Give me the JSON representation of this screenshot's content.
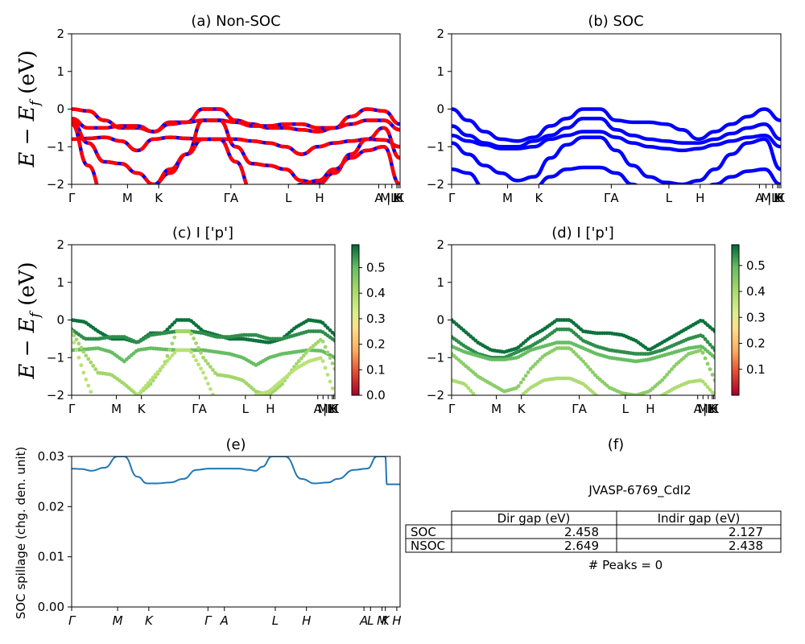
{
  "figure": {
    "colors": {
      "band": "#0000ff",
      "band_dash": "#ff0000",
      "spill": "#1f77b4"
    },
    "band_ylabel": "E − E",
    "band_ylabel_sub": "f",
    "band_ylabel_unit": " (eV)"
  },
  "chart_data": [
    {
      "id": "a",
      "type": "line",
      "title": "(a) Non-SOC",
      "xlabel": "",
      "ylabel": "E − E_f (eV)",
      "ylim": [
        -2,
        2
      ],
      "yticks": [
        "2",
        "1",
        "0",
        "−1",
        "−2"
      ],
      "xticks": [
        "Γ",
        "M",
        "K",
        "ΓA",
        "L",
        "H",
        "A",
        "M",
        "|L",
        "K",
        "H",
        "K"
      ],
      "style": "blue line with red dashes (two overlapping spin channels)",
      "series": [
        {
          "x": [
            0,
            0.5,
            1,
            1.5,
            2,
            2.5,
            3,
            3.5,
            4,
            4.5,
            5,
            5.5,
            6,
            6.5,
            7,
            7.5,
            8,
            8.5,
            9,
            9.5,
            10
          ],
          "y": [
            0.0,
            -0.05,
            -0.3,
            -0.5,
            -0.5,
            -0.6,
            -0.35,
            -0.35,
            0.0,
            0.0,
            -0.3,
            -0.4,
            -0.5,
            -0.5,
            -0.55,
            -0.6,
            -0.5,
            -0.2,
            0.0,
            -0.05,
            -0.4
          ]
        },
        {
          "x": [
            0,
            0.5,
            1,
            1.5,
            2,
            2.5,
            3,
            3.5,
            4,
            4.5,
            5,
            5.5,
            6,
            6.5,
            7,
            7.5,
            8,
            8.5,
            9,
            9.5,
            10
          ],
          "y": [
            -0.25,
            -0.5,
            -0.5,
            -0.45,
            -0.45,
            -0.6,
            -0.4,
            -0.35,
            -0.3,
            -0.3,
            -0.35,
            -0.45,
            -0.45,
            -0.4,
            -0.4,
            -0.5,
            -0.5,
            -0.4,
            -0.3,
            -0.3,
            -0.55
          ]
        },
        {
          "x": [
            0,
            0.5,
            1,
            1.5,
            2,
            2.5,
            3,
            3.5,
            4,
            4.5,
            5,
            5.5,
            6,
            6.5,
            7,
            7.5,
            8,
            8.5,
            9,
            9.5,
            10
          ],
          "y": [
            -0.8,
            -0.78,
            -0.75,
            -0.85,
            -1.1,
            -0.8,
            -0.75,
            -0.78,
            -0.8,
            -0.8,
            -0.8,
            -0.85,
            -0.9,
            -1.0,
            -1.2,
            -1.0,
            -0.9,
            -0.85,
            -0.8,
            -0.82,
            -1.0
          ]
        },
        {
          "x": [
            0,
            0.5,
            1,
            1.5,
            2,
            2.5,
            3,
            3.5,
            4,
            4.5,
            5,
            5.5,
            6,
            6.5,
            7,
            7.5,
            8,
            8.5,
            9,
            9.5,
            10
          ],
          "y": [
            -0.3,
            -0.9,
            -1.4,
            -1.45,
            -1.7,
            -2.0,
            -1.7,
            -1.2,
            -0.3,
            -0.3,
            -1.0,
            -1.45,
            -1.5,
            -1.6,
            -1.9,
            -2.0,
            -1.7,
            -1.2,
            -0.8,
            -0.5,
            -1.3
          ]
        },
        {
          "x": [
            0,
            0.5,
            1,
            1.5,
            2,
            2.5,
            3,
            3.5,
            4,
            4.5,
            5,
            5.5,
            6,
            6.5,
            7,
            7.5,
            8,
            8.5,
            9,
            9.5,
            10
          ],
          "y": [
            -0.4,
            -1.5,
            -2.4,
            -2.4,
            -2.2,
            -2.0,
            -1.6,
            -1.2,
            -0.8,
            -0.8,
            -1.4,
            -2.2,
            -2.4,
            -2.3,
            -2.0,
            -1.9,
            -1.6,
            -1.3,
            -1.1,
            -1.0,
            -2.0
          ]
        }
      ]
    },
    {
      "id": "b",
      "type": "line",
      "title": "(b) SOC",
      "xlabel": "",
      "ylabel": "",
      "ylim": [
        -2,
        2
      ],
      "yticks": [
        "2",
        "1",
        "0",
        "−1",
        "−2"
      ],
      "xticks": [
        "Γ",
        "M",
        "K",
        "ΓA",
        "L",
        "H",
        "A",
        "M",
        "|L",
        "K",
        "H",
        "K"
      ],
      "style": "blue line",
      "series": [
        {
          "x": [
            0,
            0.5,
            1,
            1.5,
            2,
            2.5,
            3,
            3.5,
            4,
            4.5,
            5,
            5.5,
            6,
            6.5,
            7,
            7.5,
            8,
            8.5,
            9,
            9.5,
            10
          ],
          "y": [
            0.0,
            -0.3,
            -0.6,
            -0.8,
            -0.85,
            -0.75,
            -0.45,
            -0.25,
            0.0,
            0.0,
            -0.3,
            -0.35,
            -0.35,
            -0.4,
            -0.55,
            -0.8,
            -0.6,
            -0.4,
            -0.2,
            0.0,
            -0.3
          ]
        },
        {
          "x": [
            0,
            0.5,
            1,
            1.5,
            2,
            2.5,
            3,
            3.5,
            4,
            4.5,
            5,
            5.5,
            6,
            6.5,
            7,
            7.5,
            8,
            8.5,
            9,
            9.5,
            10
          ],
          "y": [
            -0.45,
            -0.7,
            -0.9,
            -1.0,
            -1.0,
            -0.85,
            -0.7,
            -0.5,
            -0.25,
            -0.25,
            -0.55,
            -0.7,
            -0.8,
            -0.85,
            -0.9,
            -0.9,
            -0.8,
            -0.65,
            -0.5,
            -0.4,
            -0.8
          ]
        },
        {
          "x": [
            0,
            0.5,
            1,
            1.5,
            2,
            2.5,
            3,
            3.5,
            4,
            4.5,
            5,
            5.5,
            6,
            6.5,
            7,
            7.5,
            8,
            8.5,
            9,
            9.5,
            10
          ],
          "y": [
            -0.7,
            -0.85,
            -0.95,
            -1.05,
            -1.05,
            -1.0,
            -0.8,
            -0.7,
            -0.6,
            -0.6,
            -0.75,
            -0.9,
            -1.0,
            -1.05,
            -1.1,
            -1.05,
            -0.95,
            -0.85,
            -0.75,
            -0.7,
            -1.0
          ]
        },
        {
          "x": [
            0,
            0.5,
            1,
            1.5,
            2,
            2.5,
            3,
            3.5,
            4,
            4.5,
            5,
            5.5,
            6,
            6.5,
            7,
            7.5,
            8,
            8.5,
            9,
            9.5,
            10
          ],
          "y": [
            -0.9,
            -1.2,
            -1.5,
            -1.7,
            -1.9,
            -1.8,
            -1.3,
            -0.95,
            -0.75,
            -0.75,
            -1.1,
            -1.5,
            -1.8,
            -1.95,
            -2.0,
            -1.9,
            -1.6,
            -1.2,
            -0.9,
            -0.8,
            -1.6
          ]
        },
        {
          "x": [
            0,
            0.5,
            1,
            1.5,
            2,
            2.5,
            3,
            3.5,
            4,
            4.5,
            5,
            5.5,
            6,
            6.5,
            7,
            7.5,
            8,
            8.5,
            9,
            9.5,
            10
          ],
          "y": [
            -1.6,
            -1.7,
            -2.1,
            -2.4,
            -2.4,
            -2.1,
            -1.8,
            -1.6,
            -1.55,
            -1.55,
            -1.7,
            -2.0,
            -2.3,
            -2.4,
            -2.3,
            -2.2,
            -2.0,
            -1.8,
            -1.65,
            -1.6,
            -2.0
          ]
        }
      ]
    },
    {
      "id": "c",
      "type": "scatter",
      "title": "(c)  I ['p']",
      "xlabel": "",
      "ylabel": "E − E_f (eV)",
      "ylim": [
        -2,
        2
      ],
      "yticks": [
        "2",
        "1",
        "0",
        "−1",
        "−2"
      ],
      "xticks": [
        "Γ",
        "M",
        "K",
        "ΓA",
        "L",
        "H",
        "A",
        "M",
        "|L",
        "K",
        "H",
        "K"
      ],
      "colorbar": {
        "cmap": "RdYlGn",
        "range": [
          0.0,
          0.59
        ],
        "ticks": [
          "0.5",
          "0.4",
          "0.3",
          "0.2",
          "0.1",
          "0.0"
        ]
      },
      "series_source": "a",
      "series_weights": [
        0.58,
        0.55,
        0.5,
        0.42,
        0.38
      ]
    },
    {
      "id": "d",
      "type": "scatter",
      "title": "(d) I ['p']",
      "xlabel": "",
      "ylabel": "",
      "ylim": [
        -2,
        2
      ],
      "yticks": [
        "2",
        "1",
        "0",
        "−1",
        "−2"
      ],
      "xticks": [
        "Γ",
        "M",
        "K",
        "ΓA",
        "L",
        "H",
        "A",
        "M",
        "|L",
        "K",
        "H",
        "K"
      ],
      "colorbar": {
        "cmap": "RdYlGn",
        "range": [
          0.0,
          0.58
        ],
        "ticks": [
          "0.5",
          "0.4",
          "0.3",
          "0.2",
          "0.1"
        ]
      },
      "series_source": "b",
      "series_weights": [
        0.58,
        0.55,
        0.5,
        0.45,
        0.4
      ]
    },
    {
      "id": "e",
      "type": "line",
      "title": "(e)",
      "xlabel": "",
      "ylabel": "SOC spillage (chg. den. unit)",
      "ylim": [
        0.0,
        0.0335
      ],
      "yticks": [
        "0.03",
        "0.02",
        "0.01",
        "0.00"
      ],
      "xticks": [
        "Γ",
        "M",
        "K",
        "Γ",
        "A",
        "L",
        "H",
        "A",
        "L",
        "M",
        "K",
        "H"
      ],
      "series": [
        {
          "x": [
            0,
            0.3,
            0.6,
            1.0,
            1.4,
            1.6,
            2.0,
            2.3,
            2.6,
            3.0,
            3.4,
            3.8,
            4.2,
            4.5,
            4.8,
            5.1,
            5.4,
            5.6,
            5.8,
            6.1,
            6.5,
            7.0,
            7.4,
            7.8,
            8.1,
            8.6,
            9.0,
            9.3,
            9.45,
            9.5,
            9.55,
            9.6,
            10
          ],
          "y": [
            0.0308,
            0.0307,
            0.0303,
            0.031,
            0.0335,
            0.0335,
            0.029,
            0.0275,
            0.0275,
            0.0277,
            0.0285,
            0.0305,
            0.0308,
            0.0308,
            0.0308,
            0.0308,
            0.0305,
            0.0303,
            0.0312,
            0.0335,
            0.0335,
            0.0285,
            0.0275,
            0.0277,
            0.0285,
            0.0305,
            0.0308,
            0.0335,
            0.0335,
            0.0335,
            0.0335,
            0.0273,
            0.0273
          ]
        }
      ]
    }
  ],
  "panel_f": {
    "title": "(f)",
    "id_label": "JVASP-6769_CdI2",
    "table": {
      "headers": [
        "",
        "Dir gap (eV)",
        "Indir gap (eV)"
      ],
      "rows": [
        [
          "SOC",
          "2.458",
          "2.127"
        ],
        [
          "NSOC",
          "2.649",
          "2.438"
        ]
      ]
    },
    "peaks": "# Peaks = 0"
  }
}
